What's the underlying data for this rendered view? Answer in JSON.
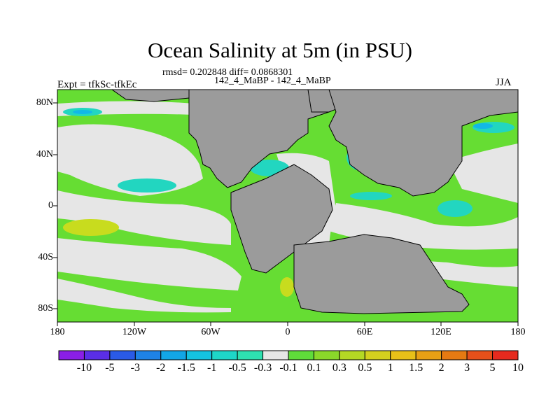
{
  "title": "Ocean Salinity at 5m (in PSU)",
  "stats": "rmsd= 0.202848 diff= 0.0868301",
  "subtitle": "142_4_MaBP - 142_4_MaBP",
  "experiment": "Expt = tfkSc-tfkEc",
  "season": "JJA",
  "colors": {
    "land": "#9b9b9b",
    "neutral": "#e6e6e6",
    "positive_low": "#66dd33",
    "positive_mid": "#c8dc1e",
    "negative_low": "#22d6c0",
    "negative_mid": "#12b8e6"
  },
  "map": {
    "lat_labels": [
      "80N",
      "40N",
      "0",
      "40S",
      "80S"
    ],
    "lon_labels": [
      "180",
      "120W",
      "60W",
      "0",
      "60E",
      "120E",
      "180"
    ]
  },
  "colorbar": {
    "colors": [
      "#8a1ee6",
      "#5a2ee6",
      "#2a5ae6",
      "#1e82e6",
      "#12a6e6",
      "#14c2e0",
      "#1ed6c8",
      "#2ee0b0",
      "#e6e6e6",
      "#5fdc3a",
      "#8ad82a",
      "#b4d824",
      "#d4d01e",
      "#e8c018",
      "#e8a014",
      "#e67a12",
      "#e6501a",
      "#e62a1e"
    ],
    "labels": [
      "-10",
      "-5",
      "-3",
      "-2",
      "-1.5",
      "-1",
      "-0.5",
      "-0.3",
      "-0.1",
      "0.1",
      "0.3",
      "0.5",
      "1",
      "1.5",
      "2",
      "3",
      "5",
      "10"
    ]
  }
}
